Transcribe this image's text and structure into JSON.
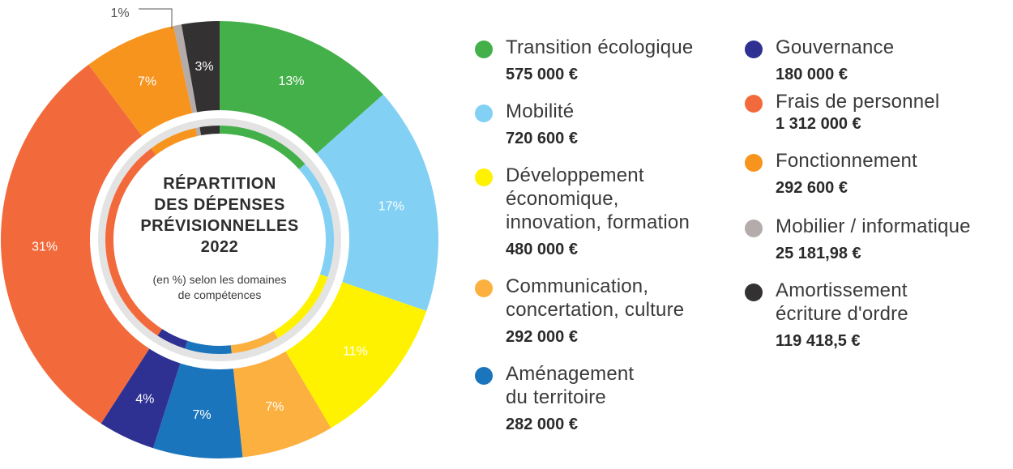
{
  "chart_data": {
    "type": "pie",
    "title": "RÉPARTITION\nDES DÉPENSES\nPRÉVISIONNELLES\n2022",
    "subtitle": "(en %) selon les domaines\nde compétences",
    "series": [
      {
        "label": "Transition écologique",
        "value": 575000,
        "value_text": "575 000 €",
        "percent_label": "13%",
        "color": "#44b04a"
      },
      {
        "label": "Mobilité",
        "value": 720600,
        "value_text": "720 600 €",
        "percent_label": "17%",
        "color": "#82d0f4"
      },
      {
        "label": "Développement\néconomique,\ninnovation, formation",
        "value": 480000,
        "value_text": "480 000 €",
        "percent_label": "11%",
        "color": "#fff200"
      },
      {
        "label": "Communication,\nconcertation, culture",
        "value": 292000,
        "value_text": "292 000 €",
        "percent_label": "7%",
        "color": "#fbb040"
      },
      {
        "label": "Aménagement\ndu territoire",
        "value": 282000,
        "value_text": "282 000 €",
        "percent_label": "7%",
        "color": "#1b75bc"
      },
      {
        "label": "Gouvernance",
        "value": 180000,
        "value_text": "180 000 €",
        "percent_label": "4%",
        "color": "#2e3192"
      },
      {
        "label": "Frais de personnel",
        "value": 1312000,
        "value_text": "1 312 000 €",
        "percent_label": "31%",
        "color": "#f26a3b"
      },
      {
        "label": "Fonctionnement",
        "value": 292600,
        "value_text": "292 600 €",
        "percent_label": "7%",
        "color": "#f7941d"
      },
      {
        "label": "Mobilier / informatique",
        "value": 25181.98,
        "value_text": "25 181,98 €",
        "percent_label": "1%",
        "color": "#b3acaa"
      },
      {
        "label": "Amortissement\nécriture d'ordre",
        "value": 119418.5,
        "value_text": "119 418,5 €",
        "percent_label": "3%",
        "color": "#333132"
      }
    ]
  },
  "legend_columns": [
    [
      0,
      1,
      2,
      3,
      4
    ],
    [
      5,
      6,
      7,
      8,
      9
    ]
  ]
}
